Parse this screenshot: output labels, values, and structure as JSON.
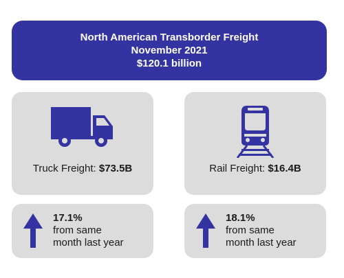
{
  "header": {
    "title": "North American Transborder Freight",
    "period": "November 2021",
    "total": "$120.1 billion"
  },
  "truck": {
    "icon": "truck-icon",
    "label": "Truck Freight: ",
    "value": "$73.5B",
    "change_pct": "17.1%",
    "change_line1": "from same",
    "change_line2": "month last year"
  },
  "rail": {
    "icon": "train-icon",
    "label": "Rail Freight: ",
    "value": "$16.4B",
    "change_pct": "18.1%",
    "change_line1": "from same",
    "change_line2": "month last year"
  },
  "colors": {
    "accent": "#3333a1",
    "card": "#dcdcdc"
  }
}
